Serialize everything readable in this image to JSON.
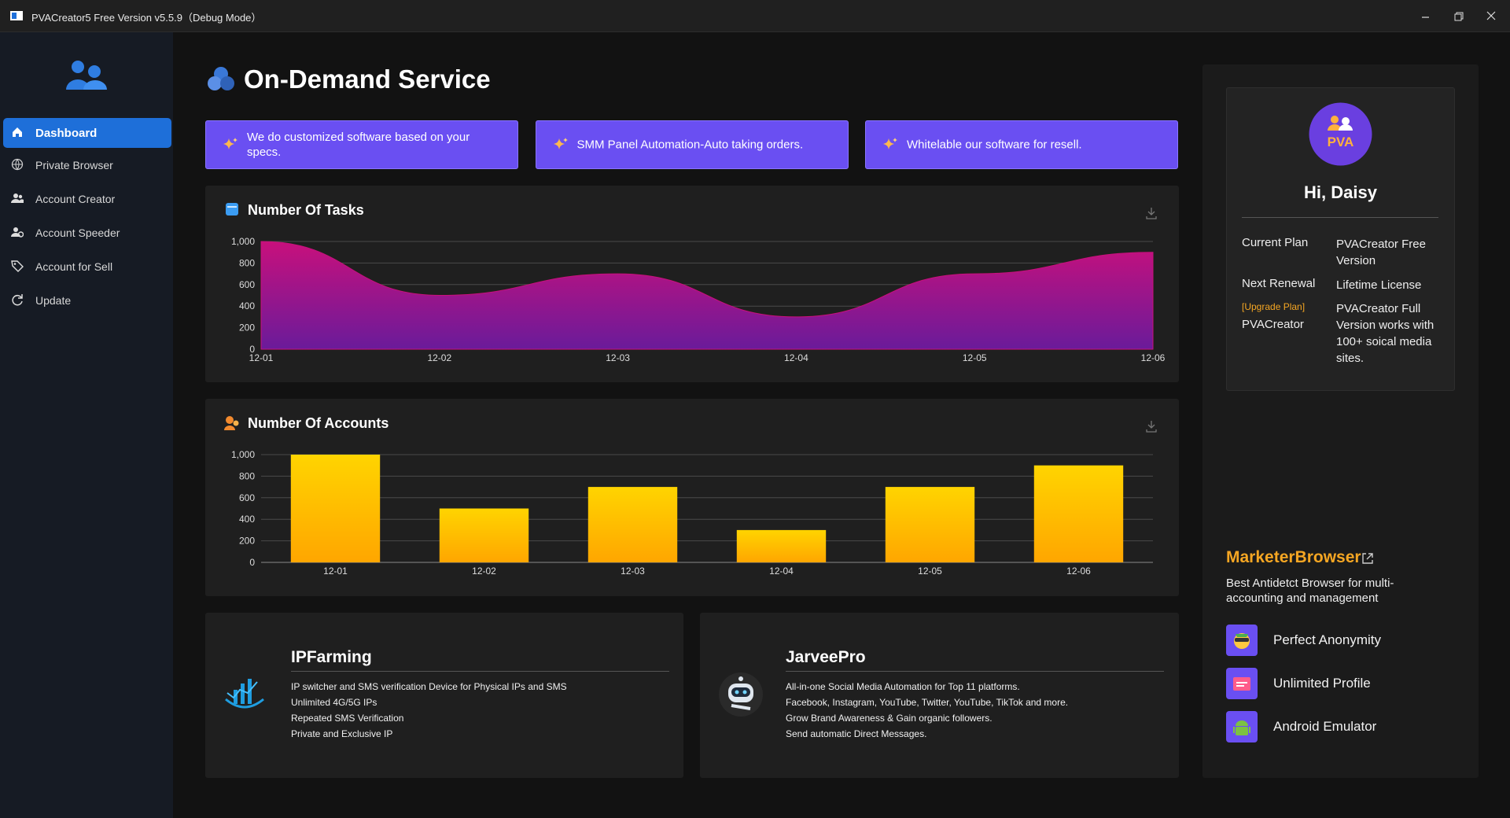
{
  "window": {
    "title": "PVACreator5 Free Version v5.5.9（Debug Mode）"
  },
  "sidebar": {
    "items": [
      "Dashboard",
      "Private Browser",
      "Account Creator",
      "Account Speeder",
      "Account for Sell",
      "Update"
    ],
    "active": 0
  },
  "header": {
    "title": "On-Demand Service"
  },
  "banners": [
    "We do customized software based on your specs.",
    "SMM Panel Automation-Auto taking orders.",
    "Whitelable our software for resell."
  ],
  "chart_data": [
    {
      "type": "area",
      "title": "Number Of Tasks",
      "categories": [
        "12-01",
        "12-02",
        "12-03",
        "12-04",
        "12-05",
        "12-06"
      ],
      "values": [
        1000,
        500,
        700,
        300,
        700,
        900
      ],
      "colors": [
        "#c8107c",
        "#6a1b9a"
      ],
      "ylim": [
        0,
        1000
      ],
      "yticks": [
        0,
        200,
        400,
        600,
        800,
        {
          "value": 1000,
          "label": "1,000"
        }
      ],
      "grid": true
    },
    {
      "type": "bar",
      "title": "Number Of Accounts",
      "categories": [
        "12-01",
        "12-02",
        "12-03",
        "12-04",
        "12-05",
        "12-06"
      ],
      "values": [
        1000,
        500,
        700,
        300,
        700,
        900
      ],
      "colors": [
        "#ffd400",
        "#ffa600"
      ],
      "ylim": [
        0,
        1000
      ],
      "yticks": [
        0,
        200,
        400,
        600,
        800,
        {
          "value": 1000,
          "label": "1,000"
        }
      ],
      "grid": true
    }
  ],
  "products": [
    {
      "title": "IPFarming",
      "lines": [
        "IP switcher and SMS verification Device for Physical IPs and SMS",
        "Unlimited 4G/5G IPs",
        "Repeated SMS Verification",
        "Private and Exclusive IP"
      ]
    },
    {
      "title": "JarveePro",
      "lines": [
        "All-in-one Social Media Automation for Top 11 platforms.",
        "Facebook, Instagram, YouTube, Twitter, YouTube, TikTok and more.",
        "Grow Brand Awareness & Gain organic followers.",
        "Send automatic Direct Messages."
      ]
    }
  ],
  "profile": {
    "badge": "PVA",
    "greeting": "Hi, Daisy",
    "rows": [
      {
        "label": "Current Plan",
        "value": "PVACreator Free Version"
      },
      {
        "label": "Next Renewal",
        "value": "Lifetime License"
      },
      {
        "link": "[Upgrade Plan]",
        "label": "PVACreator",
        "value": "PVACreator Full Version works with 100+ soical media sites."
      }
    ]
  },
  "marketer": {
    "title": "MarketerBrowser",
    "description": "Best Antidetct Browser for multi-accounting and management",
    "features": [
      "Perfect Anonymity",
      "Unlimited Profile",
      "Android Emulator"
    ]
  }
}
